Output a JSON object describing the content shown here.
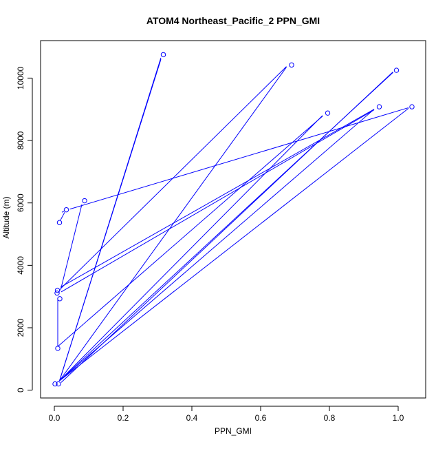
{
  "chart_data": {
    "type": "scatter",
    "title": "ATOM4 Northeast_Pacific_2 PPN_GMI",
    "xlabel": "PPN_GMI",
    "ylabel": "Altitude (m)",
    "xlim": [
      -0.04,
      1.08
    ],
    "ylim": [
      -250,
      11200
    ],
    "xticks": [
      0.0,
      0.2,
      0.4,
      0.6,
      0.8,
      1.0
    ],
    "xtick_labels": [
      "0.0",
      "0.2",
      "0.4",
      "0.6",
      "0.8",
      "1.0"
    ],
    "yticks": [
      0,
      2000,
      4000,
      6000,
      8000,
      10000
    ],
    "ytick_labels": [
      "0",
      "2000",
      "4000",
      "6000",
      "8000",
      "10000"
    ],
    "grid": false,
    "legend": "none",
    "series_color": "#0000ff",
    "points": [
      {
        "x": 0.002,
        "y": 200
      },
      {
        "x": 0.012,
        "y": 200
      },
      {
        "x": 0.01,
        "y": 1340
      },
      {
        "x": 0.016,
        "y": 2930
      },
      {
        "x": 0.008,
        "y": 3110
      },
      {
        "x": 0.009,
        "y": 3200
      },
      {
        "x": 0.015,
        "y": 5370
      },
      {
        "x": 0.035,
        "y": 5780
      },
      {
        "x": 0.088,
        "y": 6070
      },
      {
        "x": 0.317,
        "y": 10750
      },
      {
        "x": 0.69,
        "y": 10420
      },
      {
        "x": 0.795,
        "y": 8880
      },
      {
        "x": 0.945,
        "y": 9080
      },
      {
        "x": 0.995,
        "y": 10250
      },
      {
        "x": 1.04,
        "y": 9080
      }
    ],
    "segments": [
      {
        "x1": 0.002,
        "y1": 200,
        "x2": 0.002,
        "y2": 200
      },
      {
        "x1": 0.01,
        "y1": 1400,
        "x2": 0.01,
        "y2": 2900
      },
      {
        "x1": 0.01,
        "y1": 1400,
        "x2": 0.78,
        "y2": 8780
      },
      {
        "x1": 0.015,
        "y1": 300,
        "x2": 0.31,
        "y2": 10650
      },
      {
        "x1": 0.015,
        "y1": 300,
        "x2": 0.31,
        "y2": 10600
      },
      {
        "x1": 0.015,
        "y1": 300,
        "x2": 0.675,
        "y2": 10350
      },
      {
        "x1": 0.015,
        "y1": 300,
        "x2": 0.985,
        "y2": 10180
      },
      {
        "x1": 0.015,
        "y1": 300,
        "x2": 0.78,
        "y2": 8800
      },
      {
        "x1": 0.015,
        "y1": 300,
        "x2": 0.93,
        "y2": 9000
      },
      {
        "x1": 0.015,
        "y1": 300,
        "x2": 1.03,
        "y2": 9030
      },
      {
        "x1": 0.02,
        "y1": 250,
        "x2": 0.985,
        "y2": 10200
      },
      {
        "x1": 0.018,
        "y1": 3200,
        "x2": 0.08,
        "y2": 5950
      },
      {
        "x1": 0.018,
        "y1": 3250,
        "x2": 0.675,
        "y2": 10370
      },
      {
        "x1": 0.018,
        "y1": 3300,
        "x2": 0.93,
        "y2": 9000
      },
      {
        "x1": 0.02,
        "y1": 3150,
        "x2": 0.93,
        "y2": 8980
      },
      {
        "x1": 0.018,
        "y1": 5450,
        "x2": 0.03,
        "y2": 5700
      },
      {
        "x1": 0.045,
        "y1": 5800,
        "x2": 1.03,
        "y2": 9050
      },
      {
        "x1": 0.022,
        "y1": 5700,
        "x2": 0.03,
        "y2": 5750
      }
    ]
  }
}
